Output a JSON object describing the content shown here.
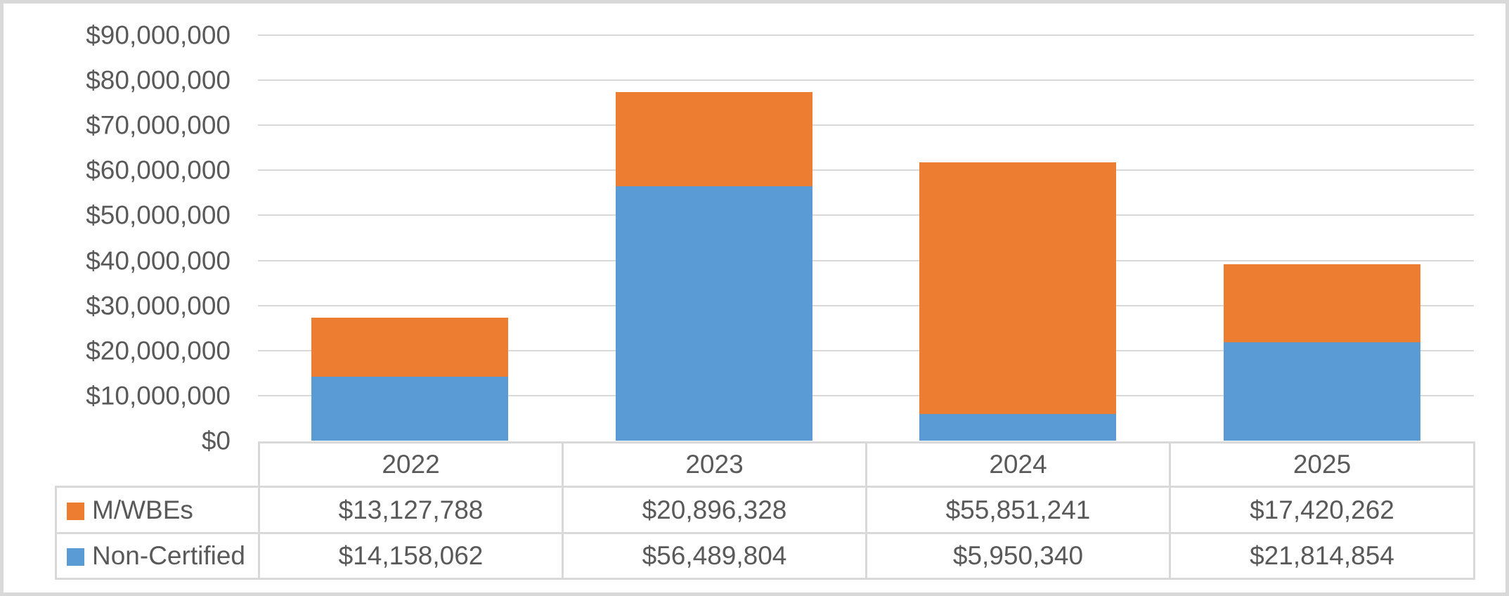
{
  "chart_data": {
    "type": "bar",
    "stacked": true,
    "title": "",
    "categories": [
      "2022",
      "2023",
      "2024",
      "2025"
    ],
    "series": [
      {
        "name": "M/WBEs",
        "color": "#ED7D31",
        "values": [
          13127788,
          20896328,
          55851241,
          17420262
        ],
        "labels": [
          "$13,127,788",
          "$20,896,328",
          "$55,851,241",
          "$17,420,262"
        ]
      },
      {
        "name": "Non-Certified",
        "color": "#5B9BD5",
        "values": [
          14158062,
          56489804,
          5950340,
          21814854
        ],
        "labels": [
          "$14,158,062",
          "$56,489,804",
          "$5,950,340",
          "$21,814,854"
        ]
      }
    ],
    "stack_order_bottom_to_top": [
      "Non-Certified",
      "M/WBEs"
    ],
    "y_axis": {
      "min": 0,
      "max": 90000000,
      "step": 10000000,
      "tick_labels": [
        "$90,000,000",
        "$80,000,000",
        "$70,000,000",
        "$60,000,000",
        "$50,000,000",
        "$40,000,000",
        "$30,000,000",
        "$20,000,000",
        "$10,000,000",
        "$0"
      ]
    },
    "grid": true,
    "legend_position": "data-table-left",
    "colors": {
      "gridline": "#D9D9D9",
      "table_border": "#D9D9D9",
      "chart_border": "#D9D9D9",
      "text": "#595959",
      "background": "#FFFFFF"
    }
  }
}
